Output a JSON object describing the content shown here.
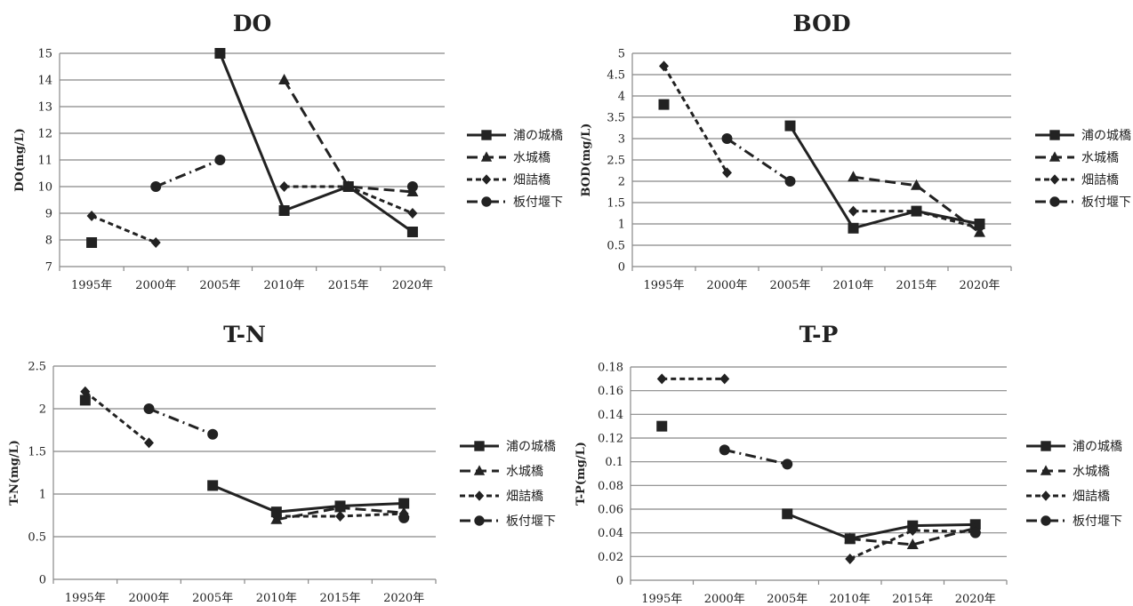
{
  "chart_data": [
    {
      "type": "line",
      "title": "DO",
      "xlabel": "",
      "ylabel": "DO(mg/L)",
      "categories": [
        "1995年",
        "2000年",
        "2005年",
        "2010年",
        "2015年",
        "2020年"
      ],
      "ylim": [
        7,
        15
      ],
      "yticks": [
        "7",
        "8",
        "9",
        "10",
        "11",
        "12",
        "13",
        "14",
        "15"
      ],
      "legend_position": "right",
      "grid": true,
      "series": [
        {
          "name": "浦の城橋",
          "values": [
            7.9,
            null,
            15,
            9.1,
            10,
            8.3
          ]
        },
        {
          "name": "水城橋",
          "values": [
            null,
            null,
            null,
            14,
            10,
            9.8
          ]
        },
        {
          "name": "畑詰橋",
          "values": [
            8.9,
            7.9,
            null,
            10,
            10,
            9
          ]
        },
        {
          "name": "板付堰下",
          "values": [
            null,
            10,
            11,
            null,
            null,
            10
          ]
        }
      ]
    },
    {
      "type": "line",
      "title": "BOD",
      "xlabel": "",
      "ylabel": "BOD(mg/L)",
      "categories": [
        "1995年",
        "2000年",
        "2005年",
        "2010年",
        "2015年",
        "2020年"
      ],
      "ylim": [
        0,
        5
      ],
      "yticks": [
        "0",
        "0.5",
        "1",
        "1.5",
        "2",
        "2.5",
        "3",
        "3.5",
        "4",
        "4.5",
        "5"
      ],
      "legend_position": "right",
      "grid": true,
      "series": [
        {
          "name": "浦の城橋",
          "values": [
            3.8,
            null,
            3.3,
            0.9,
            1.3,
            1
          ]
        },
        {
          "name": "水城橋",
          "values": [
            null,
            null,
            null,
            2.1,
            1.9,
            0.8
          ]
        },
        {
          "name": "畑詰橋",
          "values": [
            4.7,
            2.2,
            null,
            1.3,
            1.3,
            0.9
          ]
        },
        {
          "name": "板付堰下",
          "values": [
            null,
            3,
            2,
            null,
            null,
            1
          ]
        }
      ]
    },
    {
      "type": "line",
      "title": "T-N",
      "xlabel": "",
      "ylabel": "T-N(mg/L)",
      "categories": [
        "1995年",
        "2000年",
        "2005年",
        "2010年",
        "2015年",
        "2020年"
      ],
      "ylim": [
        0,
        2.5
      ],
      "yticks": [
        "0",
        "0.5",
        "1",
        "1.5",
        "2",
        "2.5"
      ],
      "legend_position": "right",
      "grid": true,
      "series": [
        {
          "name": "浦の城橋",
          "values": [
            2.1,
            null,
            1.1,
            0.79,
            0.86,
            0.89
          ]
        },
        {
          "name": "水城橋",
          "values": [
            null,
            null,
            null,
            0.7,
            0.84,
            0.78
          ]
        },
        {
          "name": "畑詰橋",
          "values": [
            2.2,
            1.6,
            null,
            0.74,
            0.74,
            0.77
          ]
        },
        {
          "name": "板付堰下",
          "values": [
            null,
            2.0,
            1.7,
            null,
            null,
            0.72
          ]
        }
      ]
    },
    {
      "type": "line",
      "title": "T-P",
      "xlabel": "",
      "ylabel": "T-P(mg/L)",
      "categories": [
        "1995年",
        "2000年",
        "2005年",
        "2010年",
        "2015年",
        "2020年"
      ],
      "ylim": [
        0,
        0.18
      ],
      "yticks": [
        "0",
        "0.02",
        "0.04",
        "0.06",
        "0.08",
        "0.1",
        "0.12",
        "0.14",
        "0.16",
        "0.18"
      ],
      "legend_position": "right",
      "grid": true,
      "series": [
        {
          "name": "浦の城橋",
          "values": [
            0.13,
            null,
            0.056,
            0.035,
            0.046,
            0.047
          ]
        },
        {
          "name": "水城橋",
          "values": [
            null,
            null,
            null,
            0.035,
            0.03,
            0.044
          ]
        },
        {
          "name": "畑詰橋",
          "values": [
            0.17,
            0.17,
            null,
            0.018,
            0.042,
            0.041
          ]
        },
        {
          "name": "板付堰下",
          "values": [
            null,
            0.11,
            0.098,
            null,
            null,
            0.04
          ]
        }
      ]
    }
  ]
}
